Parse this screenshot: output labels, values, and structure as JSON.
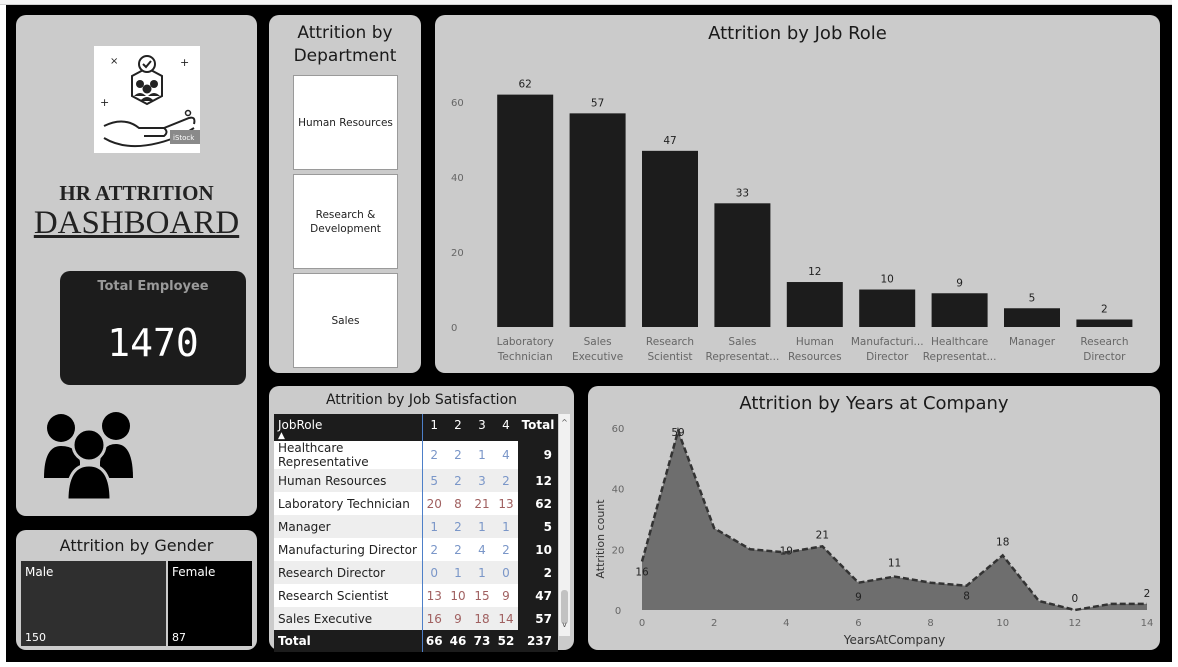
{
  "dashboard": {
    "title_line1": "HR ATTRITION",
    "title_line2": "DASHBOARD",
    "total_employee_label": "Total Employee",
    "total_employee_value": "1470",
    "logo_watermark": "iStock"
  },
  "department_slicer": {
    "title_line1": "Attrition by",
    "title_line2": "Department",
    "items": [
      {
        "line1": "Human Resources",
        "line2": ""
      },
      {
        "line1": "Research &",
        "line2": "Development"
      },
      {
        "line1": "Sales",
        "line2": ""
      }
    ]
  },
  "gender": {
    "title": "Attrition by Gender",
    "male_label": "Male",
    "male_value": "150",
    "female_label": "Female",
    "female_value": "87",
    "colors": {
      "male": "#2f2f2f",
      "female": "#000000"
    }
  },
  "job_satisfaction": {
    "title": "Attrition by Job Satisfaction",
    "headers": [
      "JobRole",
      "1",
      "2",
      "3",
      "4",
      "Total"
    ],
    "rows": [
      {
        "role": "Healthcare Representative",
        "v": [
          "2",
          "2",
          "1",
          "4"
        ],
        "total": "9"
      },
      {
        "role": "Human Resources",
        "v": [
          "5",
          "2",
          "3",
          "2"
        ],
        "total": "12"
      },
      {
        "role": "Laboratory Technician",
        "v": [
          "20",
          "8",
          "21",
          "13"
        ],
        "total": "62"
      },
      {
        "role": "Manager",
        "v": [
          "1",
          "2",
          "1",
          "1"
        ],
        "total": "5"
      },
      {
        "role": "Manufacturing Director",
        "v": [
          "2",
          "2",
          "4",
          "2"
        ],
        "total": "10"
      },
      {
        "role": "Research Director",
        "v": [
          "0",
          "1",
          "1",
          "0"
        ],
        "total": "2"
      },
      {
        "role": "Research Scientist",
        "v": [
          "13",
          "10",
          "15",
          "9"
        ],
        "total": "47"
      },
      {
        "role": "Sales Executive",
        "v": [
          "16",
          "9",
          "18",
          "14"
        ],
        "total": "57"
      }
    ],
    "total_row": {
      "label": "Total",
      "v": [
        "66",
        "46",
        "73",
        "52"
      ],
      "total": "237"
    }
  },
  "chart_data": [
    {
      "type": "bar",
      "title": "Attrition by Job Role",
      "categories": [
        [
          "Laboratory",
          "Technician"
        ],
        [
          "Sales",
          "Executive"
        ],
        [
          "Research",
          "Scientist"
        ],
        [
          "Sales",
          "Representat..."
        ],
        [
          "Human",
          "Resources"
        ],
        [
          "Manufacturi...",
          "Director"
        ],
        [
          "Healthcare",
          "Representat..."
        ],
        [
          "Manager",
          ""
        ],
        [
          "Research",
          "Director"
        ]
      ],
      "values": [
        62,
        57,
        47,
        33,
        12,
        10,
        9,
        5,
        2
      ],
      "data_labels": [
        "62",
        "57",
        "47",
        "33",
        "12",
        "10",
        "9",
        "5",
        "2"
      ],
      "yticks": [
        "0",
        "20",
        "40",
        "60"
      ],
      "ylim": [
        0,
        65
      ],
      "xlabel": "",
      "ylabel": "",
      "grid": false,
      "color": "#1c1c1c"
    },
    {
      "type": "area",
      "title": "Attrition by Years at Company",
      "x": [
        0,
        1,
        2,
        3,
        4,
        5,
        6,
        7,
        8,
        9,
        10,
        11,
        12,
        13,
        14
      ],
      "values": [
        16,
        59,
        27,
        20,
        19,
        21,
        9,
        11,
        9,
        8,
        18,
        3,
        0,
        2,
        2
      ],
      "labeled_points": [
        {
          "x": 0,
          "text": "16"
        },
        {
          "x": 1,
          "text": "59"
        },
        {
          "x": 4,
          "text": "19"
        },
        {
          "x": 5,
          "text": "21"
        },
        {
          "x": 6,
          "text": "9"
        },
        {
          "x": 7,
          "text": "11"
        },
        {
          "x": 9,
          "text": "8"
        },
        {
          "x": 10,
          "text": "18"
        },
        {
          "x": 12,
          "text": "0"
        },
        {
          "x": 14,
          "text": "2"
        }
      ],
      "xticks": [
        "0",
        "2",
        "4",
        "6",
        "8",
        "10",
        "12",
        "14"
      ],
      "yticks": [
        "0",
        "20",
        "40",
        "60"
      ],
      "xlim": [
        0,
        14
      ],
      "ylim": [
        0,
        65
      ],
      "xlabel": "YearsAtCompany",
      "ylabel": "Attrition count",
      "grid": false,
      "fill_color": "#6e6e6e",
      "line_color": "#333333"
    }
  ]
}
